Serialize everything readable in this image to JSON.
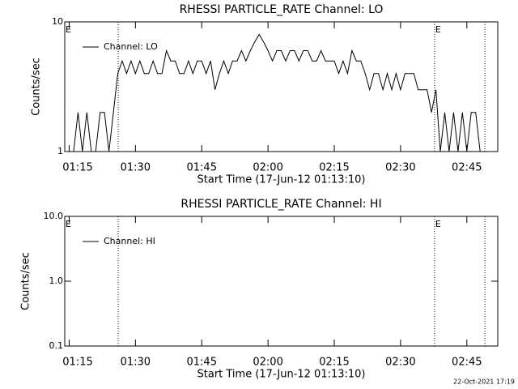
{
  "chart_data": [
    {
      "type": "line",
      "title": "RHESSI PARTICLE_RATE Channel: LO",
      "y_label": "Counts/sec",
      "x_label": "Start Time (17-Jun-12 01:13:10)",
      "log_y": true,
      "ylim": [
        1,
        10
      ],
      "yticks": [
        1,
        10
      ],
      "xlim": [
        74,
        172
      ],
      "xticks": [
        {
          "value": 75,
          "label": "01:15"
        },
        {
          "value": 90,
          "label": "01:30"
        },
        {
          "value": 105,
          "label": "01:45"
        },
        {
          "value": 120,
          "label": "02:00"
        },
        {
          "value": 135,
          "label": "02:15"
        },
        {
          "value": 150,
          "label": "02:30"
        },
        {
          "value": 165,
          "label": "02:45"
        }
      ],
      "vlines": [
        86.1,
        157.7,
        169.1
      ],
      "annotations": [
        {
          "text": "E",
          "x": 74
        },
        {
          "text": "E",
          "x": 157.7
        }
      ],
      "x": [
        76,
        77,
        78,
        79,
        80,
        81,
        82,
        83,
        84,
        85,
        86,
        87,
        88,
        89,
        90,
        91,
        92,
        93,
        94,
        95,
        96,
        97,
        98,
        99,
        100,
        101,
        102,
        103,
        104,
        105,
        106,
        107,
        108,
        109,
        110,
        111,
        112,
        113,
        114,
        115,
        116,
        117,
        118,
        119,
        120,
        121,
        122,
        123,
        124,
        125,
        126,
        127,
        128,
        129,
        130,
        131,
        132,
        133,
        134,
        135,
        136,
        137,
        138,
        139,
        140,
        141,
        142,
        143,
        144,
        145,
        146,
        147,
        148,
        149,
        150,
        151,
        152,
        153,
        154,
        155,
        156,
        157,
        158,
        159,
        160,
        161,
        162,
        163,
        164,
        165,
        166,
        167,
        168
      ],
      "series": [
        {
          "name": "Channel: LO",
          "color": "#000000",
          "values": [
            1,
            2,
            1,
            2,
            1,
            1,
            2,
            2,
            1,
            2,
            4,
            5,
            4,
            5,
            4,
            5,
            4,
            4,
            5,
            4,
            4,
            6,
            5,
            5,
            4,
            4,
            5,
            4,
            5,
            5,
            4,
            5,
            3,
            4,
            5,
            4,
            5,
            5,
            6,
            5,
            6,
            7,
            8,
            7,
            6,
            5,
            6,
            6,
            5,
            6,
            6,
            5,
            6,
            6,
            5,
            5,
            6,
            5,
            5,
            5,
            4,
            5,
            4,
            6,
            5,
            5,
            4,
            3,
            4,
            4,
            3,
            4,
            3,
            4,
            3,
            4,
            4,
            4,
            3,
            3,
            3,
            2,
            3,
            1,
            2,
            1,
            2,
            1,
            2,
            1,
            2,
            2,
            1
          ]
        }
      ]
    },
    {
      "type": "line",
      "title": "RHESSI PARTICLE_RATE Channel: HI",
      "y_label": "Counts/sec",
      "x_label": "Start Time (17-Jun-12 01:13:10)",
      "log_y": true,
      "ylim": [
        0.1,
        10
      ],
      "yticks": [
        {
          "value": 0.1,
          "label": "0.1"
        },
        {
          "value": 1,
          "label": "1.0"
        },
        {
          "value": 10,
          "label": "10.0"
        }
      ],
      "xlim": [
        74,
        172
      ],
      "xticks": [
        {
          "value": 75,
          "label": "01:15"
        },
        {
          "value": 90,
          "label": "01:30"
        },
        {
          "value": 105,
          "label": "01:45"
        },
        {
          "value": 120,
          "label": "02:00"
        },
        {
          "value": 135,
          "label": "02:15"
        },
        {
          "value": 150,
          "label": "02:30"
        },
        {
          "value": 165,
          "label": "02:45"
        }
      ],
      "vlines": [
        86.1,
        157.7,
        169.1
      ],
      "annotations": [
        {
          "text": "E",
          "x": 74
        },
        {
          "text": "E",
          "x": 157.7
        }
      ],
      "x": [],
      "series": [
        {
          "name": "Channel: HI",
          "color": "#000000",
          "values": []
        }
      ]
    }
  ],
  "footer": "22-Oct-2021 17:19"
}
